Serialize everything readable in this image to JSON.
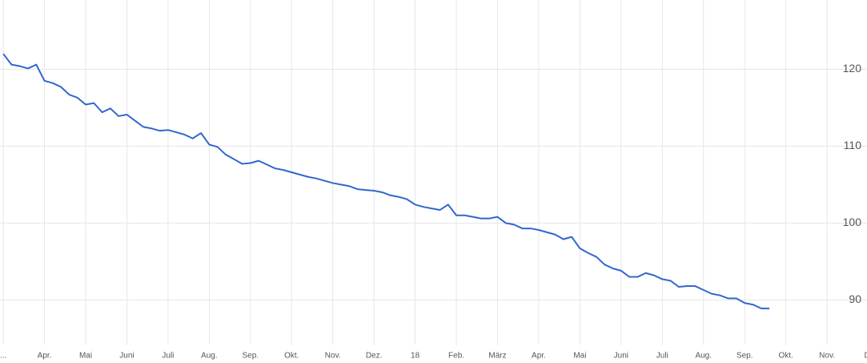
{
  "chart_data": {
    "type": "line",
    "x": [
      0,
      0.2,
      0.4,
      0.6,
      0.8,
      1,
      1.2,
      1.4,
      1.6,
      1.8,
      2,
      2.2,
      2.4,
      2.6,
      2.8,
      3,
      3.2,
      3.4,
      3.6,
      3.8,
      4,
      4.2,
      4.4,
      4.6,
      4.8,
      5,
      5.2,
      5.4,
      5.6,
      5.8,
      6,
      6.2,
      6.4,
      6.6,
      6.8,
      7,
      7.2,
      7.4,
      7.6,
      7.8,
      8,
      8.2,
      8.4,
      8.6,
      8.8,
      9,
      9.2,
      9.4,
      9.6,
      9.8,
      10,
      10.2,
      10.4,
      10.6,
      10.8,
      11,
      11.2,
      11.4,
      11.6,
      11.8,
      12,
      12.2,
      12.4,
      12.6,
      12.8,
      13,
      13.2,
      13.4,
      13.6,
      13.8,
      14,
      14.2,
      14.4,
      14.6,
      14.8,
      15,
      15.2,
      15.4,
      15.6,
      15.8,
      16,
      16.2,
      16.4,
      16.6,
      16.8,
      17,
      17.2,
      17.4,
      17.6,
      17.8,
      18,
      18.2,
      18.4,
      18.6
    ],
    "series": [
      {
        "color": "#3366cc",
        "values": [
          122.0,
          120.6,
          120.4,
          120.1,
          120.6,
          118.5,
          118.2,
          117.7,
          116.7,
          116.3,
          115.4,
          115.6,
          114.4,
          114.9,
          113.9,
          114.1,
          113.3,
          112.5,
          112.3,
          112.0,
          112.1,
          111.8,
          111.5,
          111.0,
          111.7,
          110.2,
          109.9,
          108.9,
          108.3,
          107.7,
          107.8,
          108.1,
          107.6,
          107.1,
          106.9,
          106.6,
          106.3,
          106.0,
          105.8,
          105.5,
          105.2,
          105.0,
          104.8,
          104.4,
          104.3,
          104.2,
          104.0,
          103.6,
          103.4,
          103.1,
          102.4,
          102.1,
          101.9,
          101.7,
          102.4,
          101.0,
          101.0,
          100.8,
          100.6,
          100.6,
          100.8,
          100.0,
          99.8,
          99.3,
          99.3,
          99.1,
          98.8,
          98.5,
          97.9,
          98.2,
          96.7,
          96.1,
          95.6,
          94.6,
          94.1,
          93.8,
          93.0,
          93.0,
          93.5,
          93.2,
          92.7,
          92.5,
          91.7,
          91.8,
          91.8,
          91.3,
          90.8,
          90.6,
          90.2,
          90.2,
          89.6,
          89.4,
          88.9,
          88.9
        ]
      }
    ],
    "xlim": [
      -0.08,
      20.97
    ],
    "xticks": [
      {
        "value": 0,
        "label": "..."
      },
      {
        "value": 1,
        "label": "Apr."
      },
      {
        "value": 2,
        "label": "Mai"
      },
      {
        "value": 3,
        "label": "Juni"
      },
      {
        "value": 4,
        "label": "Juli"
      },
      {
        "value": 5,
        "label": "Aug."
      },
      {
        "value": 6,
        "label": "Sep."
      },
      {
        "value": 7,
        "label": "Okt."
      },
      {
        "value": 8,
        "label": "Nov."
      },
      {
        "value": 9,
        "label": "Dez."
      },
      {
        "value": 10,
        "label": "18"
      },
      {
        "value": 11,
        "label": "Feb."
      },
      {
        "value": 12,
        "label": "März"
      },
      {
        "value": 13,
        "label": "Apr."
      },
      {
        "value": 14,
        "label": "Mai"
      },
      {
        "value": 15,
        "label": "Juni"
      },
      {
        "value": 16,
        "label": "Juli"
      },
      {
        "value": 17,
        "label": "Aug."
      },
      {
        "value": 18,
        "label": "Sep."
      },
      {
        "value": 19,
        "label": "Okt."
      },
      {
        "value": 20,
        "label": "Nov."
      },
      {
        "value": 21,
        "label": "D."
      }
    ],
    "ylim": [
      84.2,
      129
    ],
    "yticks": [
      90,
      100,
      110,
      120
    ],
    "grid": true
  }
}
